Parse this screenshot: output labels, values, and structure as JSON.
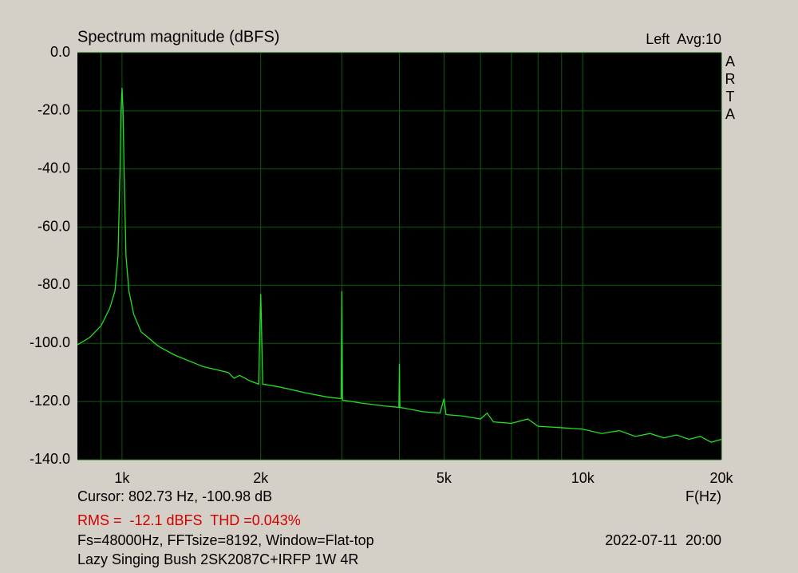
{
  "chart_data": {
    "type": "line",
    "title": "Spectrum magnitude (dBFS)",
    "channel_label": "Left  Avg:10",
    "brand": "ARTA",
    "x_label": "F(Hz)",
    "x_scale": "log",
    "xlim": [
      800,
      20000
    ],
    "ylim": [
      -140,
      0
    ],
    "xticks": [
      {
        "value": 1000,
        "label": "1k"
      },
      {
        "value": 2000,
        "label": "2k"
      },
      {
        "value": 5000,
        "label": "5k"
      },
      {
        "value": 10000,
        "label": "10k"
      },
      {
        "value": 20000,
        "label": "20k"
      }
    ],
    "x_minor_grid": [
      900,
      3000,
      4000,
      6000,
      7000,
      8000,
      9000
    ],
    "yticks": [
      {
        "value": 0,
        "label": "0.0"
      },
      {
        "value": -20,
        "label": "-20.0"
      },
      {
        "value": -40,
        "label": "-40.0"
      },
      {
        "value": -60,
        "label": "-60.0"
      },
      {
        "value": -80,
        "label": "-80.0"
      },
      {
        "value": -100,
        "label": "-100.0"
      },
      {
        "value": -120,
        "label": "-120.0"
      },
      {
        "value": -140,
        "label": "-140.0"
      }
    ],
    "grid": true,
    "x": [
      800,
      850,
      900,
      940,
      965,
      980,
      990,
      995,
      1000,
      1005,
      1010,
      1020,
      1035,
      1060,
      1100,
      1200,
      1300,
      1500,
      1700,
      1750,
      1800,
      1900,
      1980,
      1995,
      2000,
      2005,
      2020,
      2200,
      2500,
      2800,
      2990,
      2995,
      3000,
      3005,
      3010,
      3300,
      3700,
      3990,
      3995,
      4000,
      4005,
      4010,
      4500,
      4900,
      5000,
      5050,
      5500,
      6000,
      6200,
      6400,
      7000,
      7600,
      8000,
      9000,
      10000,
      11000,
      12000,
      13000,
      14000,
      15000,
      16000,
      17000,
      18000,
      19000,
      20000
    ],
    "series": [
      {
        "color": "#22e022",
        "values": [
          -100.5,
          -98,
          -94,
          -88,
          -82,
          -70,
          -40,
          -20,
          -12.1,
          -20,
          -40,
          -70,
          -82,
          -90,
          -96,
          -101,
          -104,
          -108,
          -110,
          -112,
          -111,
          -113,
          -114,
          -90,
          -83,
          -90,
          -114,
          -115,
          -117,
          -118.5,
          -119,
          -100,
          -82,
          -100,
          -119.5,
          -120.5,
          -121.5,
          -122,
          -115,
          -107,
          -115,
          -122,
          -123.5,
          -124,
          -119,
          -124.5,
          -125,
          -126,
          -124,
          -127,
          -127.5,
          -126,
          -128.5,
          -129,
          -129.5,
          -131,
          -130,
          -132,
          -131,
          -132.5,
          -131.5,
          -133,
          -132,
          -134,
          -133
        ]
      }
    ],
    "info": {
      "cursor": "Cursor: 802.73 Hz, -100.98 dB",
      "measurement": "RMS =  -12.1 dBFS  THD =0.043%",
      "settings": "Fs=48000Hz, FFTsize=8192, Window=Flat-top",
      "date": "2022-07-11  20:00",
      "device": "Lazy Singing Bush 2SK2087C+IRFP 1W 4R"
    }
  }
}
